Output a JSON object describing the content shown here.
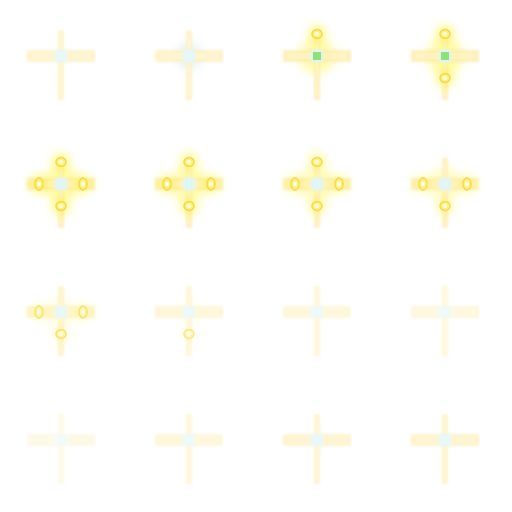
{
  "sprite_sheet": {
    "columns": 4,
    "rows": 4,
    "colors": {
      "core": "#dff6f8",
      "core_hot": "#8be27a",
      "arm": "#fff3c2",
      "arm_edge": "#fde9a0",
      "orb": "#fff27a",
      "orb_glow": "#fff200",
      "ring": "#f6d64a",
      "halo_blue": "#cfe9ff"
    },
    "frames": [
      {
        "index": 1,
        "opacity": 0.75,
        "glow": 0.0,
        "core_hot": false,
        "pods": [],
        "halo": false
      },
      {
        "index": 2,
        "opacity": 0.8,
        "glow": 0.15,
        "core_hot": false,
        "pods": [],
        "halo": true
      },
      {
        "index": 3,
        "opacity": 1.0,
        "glow": 0.95,
        "core_hot": true,
        "pods": [
          "up"
        ],
        "halo": false
      },
      {
        "index": 4,
        "opacity": 1.0,
        "glow": 1.0,
        "core_hot": true,
        "pods": [
          "up",
          "down"
        ],
        "halo": false
      },
      {
        "index": 5,
        "opacity": 1.0,
        "glow": 1.0,
        "core_hot": false,
        "pods": [
          "up",
          "down",
          "left",
          "right"
        ],
        "halo": false
      },
      {
        "index": 6,
        "opacity": 1.0,
        "glow": 0.9,
        "core_hot": false,
        "pods": [
          "up",
          "down",
          "left",
          "right"
        ],
        "halo": false
      },
      {
        "index": 7,
        "opacity": 0.95,
        "glow": 0.8,
        "core_hot": false,
        "pods": [
          "up",
          "down",
          "left",
          "right"
        ],
        "halo": false
      },
      {
        "index": 8,
        "opacity": 0.95,
        "glow": 0.7,
        "core_hot": false,
        "pods": [
          "down",
          "left",
          "right"
        ],
        "halo": false
      },
      {
        "index": 9,
        "opacity": 0.75,
        "glow": 0.45,
        "core_hot": false,
        "pods": [
          "down",
          "left",
          "right"
        ],
        "halo": false
      },
      {
        "index": 10,
        "opacity": 0.6,
        "glow": 0.2,
        "core_hot": false,
        "pods": [
          "down"
        ],
        "halo": false
      },
      {
        "index": 11,
        "opacity": 0.55,
        "glow": 0.05,
        "core_hot": false,
        "pods": [],
        "halo": false
      },
      {
        "index": 12,
        "opacity": 0.5,
        "glow": 0.0,
        "core_hot": false,
        "pods": [],
        "halo": false
      },
      {
        "index": 13,
        "opacity": 0.4,
        "glow": 0.0,
        "core_hot": false,
        "pods": [],
        "halo": false
      },
      {
        "index": 14,
        "opacity": 0.55,
        "glow": 0.0,
        "core_hot": false,
        "pods": [],
        "halo": false
      },
      {
        "index": 15,
        "opacity": 0.7,
        "glow": 0.0,
        "core_hot": false,
        "pods": [],
        "halo": false
      },
      {
        "index": 16,
        "opacity": 0.75,
        "glow": 0.0,
        "core_hot": false,
        "pods": [],
        "halo": false
      }
    ]
  }
}
